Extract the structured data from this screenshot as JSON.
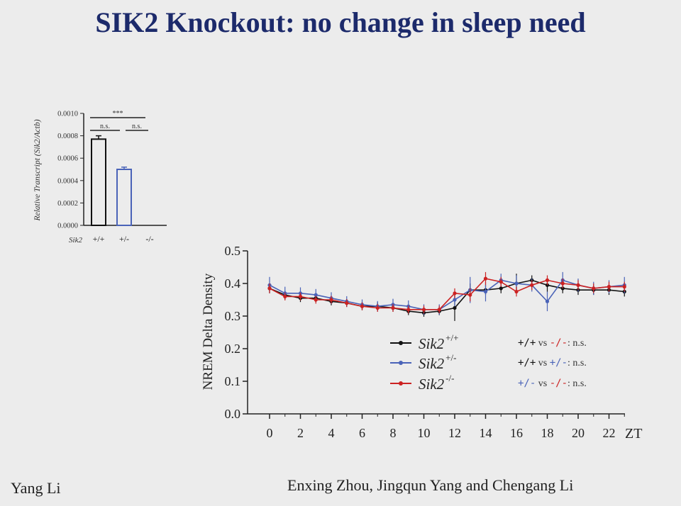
{
  "slide": {
    "title": "SIK2 Knockout: no change in sleep need",
    "presenter": "Yang Li",
    "authors": "Enxing Zhou, Jingqun Yang and Chengang Li"
  },
  "chart_data": [
    {
      "type": "bar",
      "ylabel": "Relative Transcript (Sik2/Actb)",
      "xlabel": "Sik2",
      "categories": [
        "+/+",
        "+/-",
        "-/-"
      ],
      "values": [
        0.00077,
        0.0005,
        0.0
      ],
      "errors": [
        3e-05,
        2e-05,
        0.0
      ],
      "bar_colors": [
        "#111111",
        "#4a63b8",
        "#cc2222"
      ],
      "ylim": [
        0,
        0.001
      ],
      "yticks": [
        "0.0000",
        "0.0002",
        "0.0004",
        "0.0006",
        "0.0008",
        "0.0010"
      ],
      "ytick_values": [
        0,
        0.0002,
        0.0004,
        0.0006,
        0.0008,
        0.001
      ],
      "significance": [
        {
          "pair": [
            "+/+",
            "-/-"
          ],
          "label": "***"
        },
        {
          "pair": [
            "+/+",
            "+/-"
          ],
          "label": "n.s."
        },
        {
          "pair": [
            "+/-",
            "-/-"
          ],
          "label": "n.s."
        }
      ]
    },
    {
      "type": "line",
      "ylabel": "NREM Delta Density",
      "xlabel": "ZT",
      "ylim": [
        0,
        0.5
      ],
      "yticks": [
        "0.0",
        "0.1",
        "0.2",
        "0.3",
        "0.4",
        "0.5"
      ],
      "ytick_values": [
        0,
        0.1,
        0.2,
        0.3,
        0.4,
        0.5
      ],
      "xticks": [
        "0",
        "2",
        "4",
        "6",
        "8",
        "10",
        "12",
        "14",
        "16",
        "18",
        "20",
        "22"
      ],
      "xtick_values": [
        0,
        2,
        4,
        6,
        8,
        10,
        12,
        14,
        16,
        18,
        20,
        22
      ],
      "xlim": [
        -0.5,
        23
      ],
      "x": [
        0,
        1,
        2,
        3,
        4,
        5,
        6,
        7,
        8,
        9,
        10,
        11,
        12,
        13,
        14,
        15,
        16,
        17,
        18,
        19,
        20,
        21,
        22,
        23
      ],
      "series": [
        {
          "name": "Sik2",
          "genotype": "+/+",
          "color": "#111111",
          "values": [
            0.385,
            0.365,
            0.355,
            0.355,
            0.345,
            0.34,
            0.33,
            0.33,
            0.325,
            0.315,
            0.31,
            0.315,
            0.325,
            0.38,
            0.38,
            0.385,
            0.4,
            0.41,
            0.395,
            0.385,
            0.38,
            0.38,
            0.38,
            0.375
          ],
          "errors": [
            0.015,
            0.012,
            0.012,
            0.012,
            0.012,
            0.012,
            0.012,
            0.012,
            0.012,
            0.012,
            0.012,
            0.012,
            0.04,
            0.02,
            0.015,
            0.015,
            0.03,
            0.015,
            0.02,
            0.015,
            0.015,
            0.015,
            0.015,
            0.015
          ]
        },
        {
          "name": "Sik2",
          "genotype": "+/-",
          "color": "#4a63b8",
          "values": [
            0.395,
            0.37,
            0.37,
            0.365,
            0.355,
            0.345,
            0.335,
            0.33,
            0.335,
            0.33,
            0.32,
            0.32,
            0.35,
            0.38,
            0.375,
            0.41,
            0.4,
            0.395,
            0.345,
            0.41,
            0.395,
            0.385,
            0.39,
            0.395
          ],
          "errors": [
            0.025,
            0.02,
            0.018,
            0.018,
            0.018,
            0.016,
            0.016,
            0.016,
            0.018,
            0.018,
            0.016,
            0.016,
            0.02,
            0.04,
            0.03,
            0.02,
            0.025,
            0.02,
            0.03,
            0.025,
            0.02,
            0.02,
            0.02,
            0.025
          ]
        },
        {
          "name": "Sik2",
          "genotype": "-/-",
          "color": "#cc2222",
          "values": [
            0.385,
            0.36,
            0.36,
            0.35,
            0.35,
            0.34,
            0.33,
            0.325,
            0.325,
            0.32,
            0.32,
            0.32,
            0.37,
            0.365,
            0.415,
            0.405,
            0.375,
            0.395,
            0.41,
            0.4,
            0.395,
            0.385,
            0.39,
            0.39
          ],
          "errors": [
            0.015,
            0.012,
            0.012,
            0.012,
            0.012,
            0.012,
            0.012,
            0.012,
            0.012,
            0.012,
            0.012,
            0.012,
            0.015,
            0.02,
            0.02,
            0.015,
            0.015,
            0.015,
            0.015,
            0.015,
            0.015,
            0.015,
            0.015,
            0.015
          ]
        }
      ],
      "legend_position": "bottom-center",
      "comparisons": [
        {
          "a": "+/+",
          "b": "-/-",
          "vs": "vs",
          "result": "n.s."
        },
        {
          "a": "+/+",
          "b": "+/-",
          "vs": "vs",
          "result": "n.s."
        },
        {
          "a": "+/-",
          "b": "-/-",
          "vs": "vs",
          "result": "n.s."
        }
      ]
    }
  ]
}
